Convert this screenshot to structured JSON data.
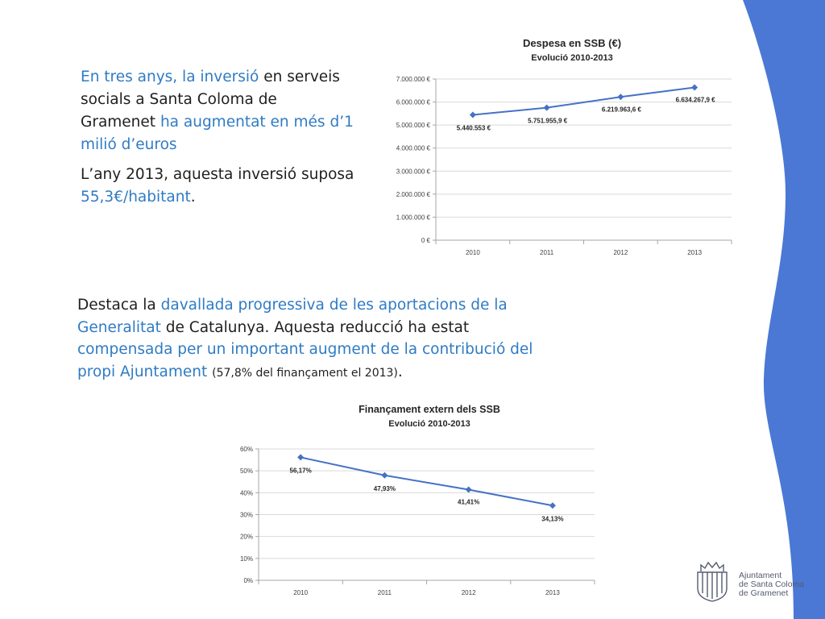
{
  "text": {
    "p1": [
      {
        "t": "En tres anys, la ",
        "c": "blue"
      },
      {
        "t": "inversió",
        "c": "blue"
      },
      {
        "t": " en serveis socials a Santa Coloma de Gramenet ",
        "c": "dark"
      },
      {
        "t": "ha augmentat en més d’1 milió d’euros",
        "c": "blue"
      }
    ],
    "p2": [
      {
        "t": "L’any 2013, aquesta inversió suposa ",
        "c": "dark"
      },
      {
        "t": "55,3€/habitant",
        "c": "blue"
      },
      {
        "t": ".",
        "c": "dark"
      }
    ],
    "p3": [
      {
        "t": "Destaca la ",
        "c": "dark"
      },
      {
        "t": "davallada progressiva de les aportacions de la Generalitat",
        "c": "blue"
      },
      {
        "t": " de Catalunya. Aquesta reducció ha estat ",
        "c": "dark"
      },
      {
        "t": "compensada per un important augment de la contribució del propi Ajuntament",
        "c": "blue"
      },
      {
        "t": " ",
        "c": "dark"
      },
      {
        "t": "(57,8% del finançament el 2013)",
        "c": "dark",
        "small": true
      },
      {
        "t": ".",
        "c": "dark"
      }
    ]
  },
  "logo": {
    "text": "Ajuntament\nde Santa Coloma\nde Gramenet",
    "icon": "coat-of-arms-icon"
  },
  "colors": {
    "line": "#4472c4",
    "accent_blue_text": "#2f7bc4",
    "side_band": "#4a78d4",
    "grid": "#d9d9d9"
  },
  "chart_data": [
    {
      "type": "line",
      "title": "Despesa en  SSB (€)",
      "subtitle": "Evolució 2010-2013",
      "categories": [
        "2010",
        "2011",
        "2012",
        "2013"
      ],
      "series": [
        {
          "values": [
            5440553,
            5751955.9,
            6219963.6,
            6634267.9
          ]
        }
      ],
      "data_labels": [
        "5.440.553 €",
        "5.751.955,9 €",
        "6.219.963,6 €",
        "6.634.267,9 €"
      ],
      "y_ticks": [
        "0 €",
        "1.000.000 €",
        "2.000.000 €",
        "3.000.000 €",
        "4.000.000 €",
        "5.000.000 €",
        "6.000.000 €",
        "7.000.000 €"
      ],
      "ylim": [
        0,
        7000000
      ],
      "xlabel": "",
      "ylabel": "",
      "grid": true,
      "legend": "none"
    },
    {
      "type": "line",
      "title": "Finançament extern dels SSB",
      "subtitle": "Evolució 2010-2013",
      "categories": [
        "2010",
        "2011",
        "2012",
        "2013"
      ],
      "series": [
        {
          "values": [
            56.17,
            47.93,
            41.41,
            34.13
          ]
        }
      ],
      "data_labels": [
        "56,17%",
        "47,93%",
        "41,41%",
        "34,13%"
      ],
      "y_ticks": [
        "0%",
        "10%",
        "20%",
        "30%",
        "40%",
        "50%",
        "60%"
      ],
      "ylim": [
        0,
        60
      ],
      "xlabel": "",
      "ylabel": "",
      "grid": true,
      "legend": "none"
    }
  ]
}
